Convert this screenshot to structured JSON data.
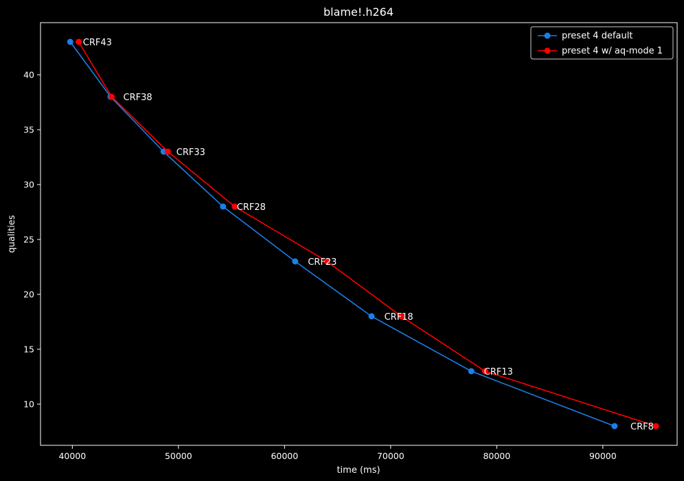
{
  "chart_data": {
    "type": "line",
    "title": "blame!.h264",
    "xlabel": "time (ms)",
    "ylabel": "qualities",
    "xlim": [
      37000,
      97000
    ],
    "ylim": [
      6.25,
      44.75
    ],
    "xticks": [
      40000,
      50000,
      60000,
      70000,
      80000,
      90000
    ],
    "yticks": [
      10,
      15,
      20,
      25,
      30,
      35,
      40
    ],
    "grid": false,
    "legend_position": "top-right",
    "series": [
      {
        "name": "preset 4 default",
        "color": "#1a7fe8",
        "points": [
          {
            "x": 39800,
            "y": 43
          },
          {
            "x": 43600,
            "y": 38
          },
          {
            "x": 48600,
            "y": 33
          },
          {
            "x": 54200,
            "y": 28
          },
          {
            "x": 61000,
            "y": 23
          },
          {
            "x": 68200,
            "y": 18
          },
          {
            "x": 77600,
            "y": 13
          },
          {
            "x": 91100,
            "y": 8
          }
        ]
      },
      {
        "name": "preset 4 w/ aq-mode 1",
        "color": "#ff0000",
        "points": [
          {
            "x": 40600,
            "y": 43
          },
          {
            "x": 43700,
            "y": 38
          },
          {
            "x": 49000,
            "y": 33
          },
          {
            "x": 55300,
            "y": 28
          },
          {
            "x": 64000,
            "y": 23
          },
          {
            "x": 71000,
            "y": 18
          },
          {
            "x": 78900,
            "y": 13
          },
          {
            "x": 95000,
            "y": 8
          }
        ]
      }
    ],
    "annotations": [
      {
        "text": "CRF43",
        "x": 41000,
        "y": 43
      },
      {
        "text": "CRF38",
        "x": 44800,
        "y": 38
      },
      {
        "text": "CRF33",
        "x": 49800,
        "y": 33
      },
      {
        "text": "CRF28",
        "x": 55500,
        "y": 28
      },
      {
        "text": "CRF23",
        "x": 62200,
        "y": 23
      },
      {
        "text": "CRF18",
        "x": 69400,
        "y": 18
      },
      {
        "text": "CRF13",
        "x": 78800,
        "y": 13
      },
      {
        "text": "CRF8",
        "x": 92600,
        "y": 8
      }
    ]
  }
}
